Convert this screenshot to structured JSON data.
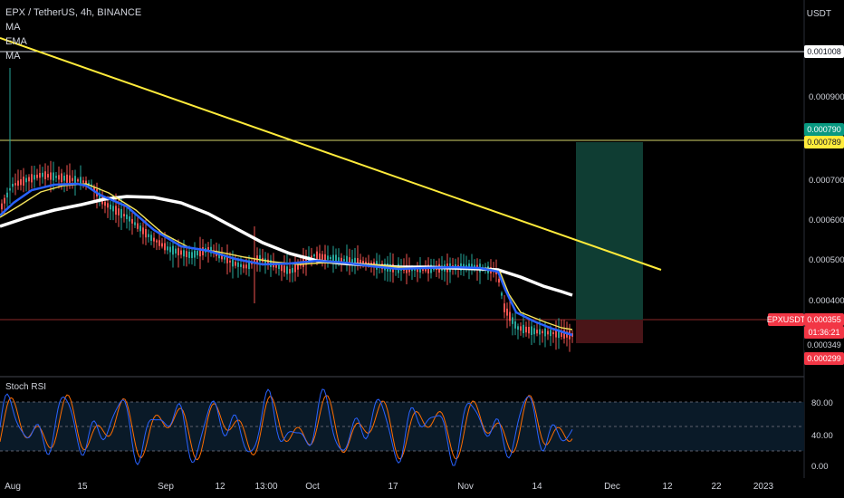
{
  "header": {
    "symbol_line": "EPX / TetherUS, 4h, BINANCE",
    "indicators": [
      "MA",
      "EMA",
      "MA"
    ],
    "currency": "USDT"
  },
  "price_axis": {
    "ticks": [
      "0.000900",
      "0.000700",
      "0.000600",
      "0.000500",
      "0.000400"
    ],
    "tags": [
      {
        "text": "0.001008",
        "style": "white"
      },
      {
        "text": "0.000790",
        "style": "teal"
      },
      {
        "text": "0.000789",
        "style": "yellow"
      },
      {
        "text": "EPXUSDT",
        "style": "red"
      },
      {
        "text": "0.000355",
        "style": "red"
      },
      {
        "text": "01:36:21",
        "style": "red"
      },
      {
        "text": "0.000349",
        "style": "plain"
      },
      {
        "text": "0.000299",
        "style": "red"
      }
    ]
  },
  "stoch_rsi": {
    "label": "Stoch RSI",
    "ticks": [
      "80.00",
      "40.00",
      "0.00"
    ]
  },
  "time_axis": [
    "Aug",
    "15",
    "Sep",
    "12",
    "13:00",
    "Oct",
    "17",
    "Nov",
    "14",
    "Dec",
    "12",
    "22",
    "2023"
  ],
  "colors": {
    "up": "#26a69a",
    "down": "#ef5350",
    "ma_white": "#ffffff",
    "ema_yellow": "#f3e35c",
    "ma_blue": "#2962ff",
    "trend": "#ffeb3b",
    "profit_zone": "#0f3d33",
    "loss_zone": "#4a1518",
    "rsi_k": "#2962ff",
    "rsi_d": "#ff6d00"
  }
}
